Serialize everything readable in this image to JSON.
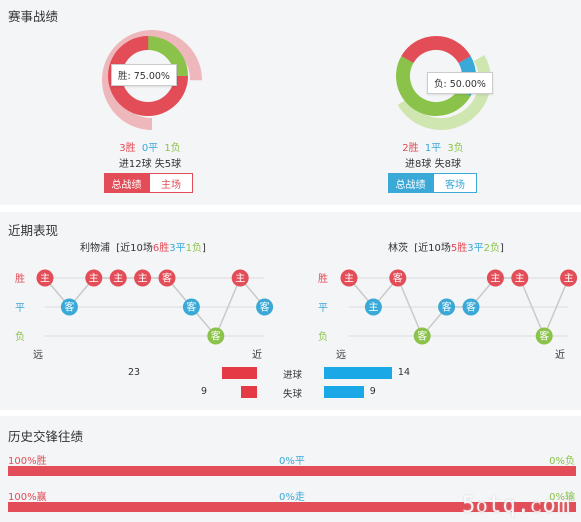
{
  "colors": {
    "win": "#e24d57",
    "draw": "#3aa9d8",
    "loss": "#8bc34a",
    "line": "#c9c9c9",
    "bar_red": "#e63946",
    "bar_blue": "#1ba8e6"
  },
  "record": {
    "title": "赛事战绩",
    "left": {
      "tooltip": "胜: 75.00%",
      "win_count": 3,
      "draw_count": 0,
      "loss_count": 1,
      "win_text": "3胜",
      "draw_text": "0平",
      "loss_text": "1负",
      "goals_text": "进12球 失5球",
      "btn_all": "总战绩",
      "btn_venue": "主场"
    },
    "right": {
      "tooltip": "负: 50.00%",
      "win_count": 2,
      "draw_count": 1,
      "loss_count": 3,
      "win_text": "2胜",
      "draw_text": "1平",
      "loss_text": "3负",
      "goals_text": "进8球 失8球",
      "btn_all": "总战绩",
      "btn_venue": "客场"
    }
  },
  "recent": {
    "title": "近期表现",
    "axis_win": "胜",
    "axis_draw": "平",
    "axis_loss": "负",
    "far": "远",
    "near": "近",
    "left": {
      "team": "利物浦",
      "summary_prefix": "[近10场",
      "wins": "6胜",
      "draws": "3平",
      "losses": "1负",
      "summary_suffix": "]",
      "results": [
        "W",
        "D",
        "W",
        "W",
        "W",
        "W",
        "D",
        "L",
        "W",
        "D"
      ],
      "venues": [
        "主",
        "客",
        "主",
        "主",
        "主",
        "客",
        "客",
        "客",
        "主",
        "客"
      ]
    },
    "right": {
      "team": "林茨",
      "summary_prefix": "[近10场",
      "wins": "5胜",
      "draws": "3平",
      "losses": "2负",
      "summary_suffix": "]",
      "results": [
        "W",
        "D",
        "W",
        "L",
        "D",
        "D",
        "W",
        "W",
        "L",
        "W"
      ],
      "venues": [
        "主",
        "主",
        "客",
        "客",
        "客",
        "客",
        "主",
        "主",
        "客",
        "主"
      ]
    },
    "goals_for_label": "进球",
    "goals_against_label": "失球",
    "left_goals_for": 23,
    "left_goals_against": 9,
    "right_goals_for": 14,
    "right_goals_against": 9
  },
  "history": {
    "title": "历史交锋往绩",
    "row1": {
      "left": "100%胜",
      "mid": "0%平",
      "right": "0%负",
      "fill": 1.0
    },
    "row2": {
      "left": "100%赢",
      "mid": "0%走",
      "right": "0%输",
      "fill": 1.0
    },
    "watermark": "5ᴏtq.ᴄom"
  }
}
